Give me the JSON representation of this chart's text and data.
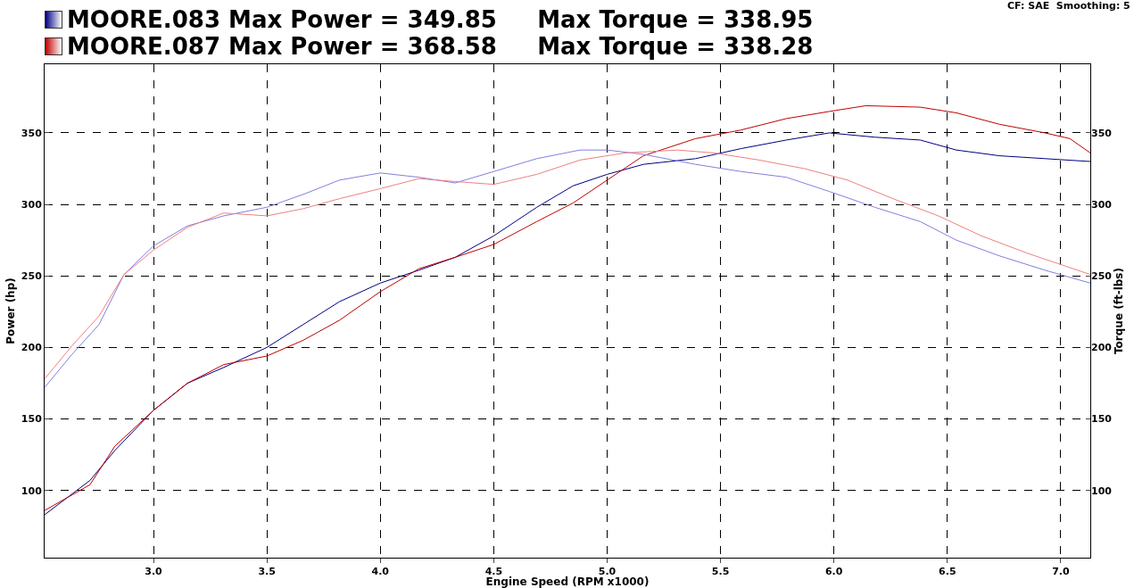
{
  "chart_data": {
    "type": "line",
    "xlabel": "Engine Speed (RPM x1000)",
    "ylabel": "Power (hp)",
    "y2label": "Torque (ft-lbs)",
    "annotations": [
      "MOORE.083 Max Power = 349.85     Max Torque = 338.95",
      "MOORE.087 Max Power = 368.58     Max Torque = 338.28",
      "CF: SAE  Smoothing: 5"
    ],
    "xlim": [
      2.52,
      7.13
    ],
    "xticks": [
      {
        "value": 3,
        "label": "3.0"
      },
      3.5,
      {
        "value": 4,
        "label": "4.0"
      },
      4.5,
      {
        "value": 5,
        "label": "5.0"
      },
      5.5,
      {
        "value": 6,
        "label": "6.0"
      },
      6.5,
      {
        "value": 7,
        "label": "7.0"
      }
    ],
    "ylim": [
      53,
      398
    ],
    "yticks": [
      100,
      150,
      200,
      250,
      300,
      350
    ],
    "y2lim": [
      53,
      398
    ],
    "y2ticks": [
      100,
      150,
      200,
      250,
      300,
      350
    ],
    "grid": true,
    "marker": "none",
    "line_style": "solid",
    "series": [
      {
        "color": "#000080",
        "x": [
          2.52,
          2.72,
          2.83,
          3.0,
          3.15,
          3.31,
          3.5,
          3.66,
          3.82,
          4.0,
          4.17,
          4.33,
          4.5,
          4.69,
          4.85,
          5.0,
          5.16,
          5.39,
          5.59,
          5.79,
          5.98,
          6.18,
          6.38,
          6.54,
          6.73,
          6.93,
          7.13
        ],
        "values": [
          83,
          107,
          128,
          156,
          175,
          186,
          200,
          216,
          232,
          245,
          254,
          263,
          278,
          298,
          313,
          321,
          328,
          332,
          339,
          345,
          350,
          347,
          345,
          338,
          334,
          332,
          330
        ]
      },
      {
        "color": "#8080e0",
        "axis": "y2",
        "x": [
          2.52,
          2.64,
          2.76,
          2.87,
          3.0,
          3.15,
          3.31,
          3.5,
          3.66,
          3.82,
          4.0,
          4.17,
          4.33,
          4.5,
          4.69,
          4.88,
          5.0,
          5.16,
          5.39,
          5.59,
          5.79,
          5.98,
          6.18,
          6.38,
          6.54,
          6.73,
          6.93,
          7.13
        ],
        "values": [
          172,
          195,
          216,
          251,
          271,
          285,
          292,
          298,
          307,
          317,
          322,
          319,
          315,
          323,
          332,
          338,
          338,
          335,
          328,
          323,
          319,
          309,
          298,
          288,
          275,
          264,
          254,
          245
        ]
      },
      {
        "color": "#c00000",
        "x": [
          2.52,
          2.72,
          2.83,
          3.0,
          3.15,
          3.31,
          3.5,
          3.66,
          3.82,
          4.0,
          4.17,
          4.33,
          4.5,
          4.69,
          4.85,
          5.0,
          5.16,
          5.39,
          5.59,
          5.79,
          5.98,
          6.14,
          6.38,
          6.54,
          6.73,
          6.93,
          7.04,
          7.13
        ],
        "values": [
          86,
          104,
          131,
          156,
          175,
          188,
          194,
          205,
          219,
          239,
          255,
          263,
          272,
          288,
          301,
          317,
          334,
          346,
          352,
          360,
          365,
          369,
          368,
          364,
          356,
          350,
          346,
          336
        ]
      },
      {
        "color": "#f08080",
        "axis": "y2",
        "x": [
          2.52,
          2.64,
          2.76,
          2.87,
          3.0,
          3.15,
          3.31,
          3.5,
          3.66,
          3.82,
          4.0,
          4.17,
          4.33,
          4.5,
          4.69,
          4.88,
          5.08,
          5.31,
          5.47,
          5.67,
          5.87,
          6.06,
          6.26,
          6.46,
          6.65,
          6.85,
          7.13
        ],
        "values": [
          178,
          201,
          222,
          251,
          268,
          284,
          294,
          292,
          297,
          304,
          311,
          318,
          316,
          314,
          321,
          331,
          336,
          338,
          336,
          331,
          325,
          317,
          304,
          292,
          278,
          266,
          251
        ]
      }
    ]
  }
}
